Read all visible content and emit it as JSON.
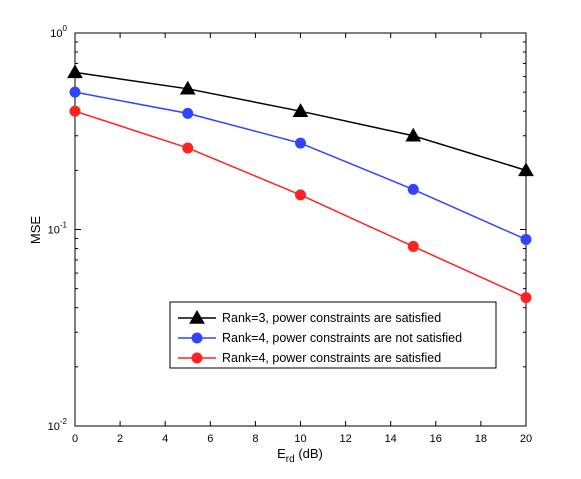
{
  "chart_data": {
    "type": "line",
    "title": "",
    "xlabel": {
      "main": "E",
      "sub": "rd",
      "unit": " (dB)"
    },
    "ylabel": "MSE",
    "x_ticks": [
      0,
      2,
      4,
      6,
      8,
      10,
      12,
      14,
      16,
      18,
      20
    ],
    "xlim": [
      0,
      20
    ],
    "y_scale": "log",
    "ylim": [
      0.01,
      1
    ],
    "y_ticks": [
      {
        "value": 0.01,
        "base": "10",
        "exp": "-2"
      },
      {
        "value": 0.1,
        "base": "10",
        "exp": "-1"
      },
      {
        "value": 1,
        "base": "10",
        "exp": "0"
      }
    ],
    "grid": false,
    "legend_position": "lower-right",
    "series": [
      {
        "name": "Rank=3, power constraints are satisfied",
        "color": "#000000",
        "marker": "triangle",
        "x": [
          0,
          5,
          10,
          15,
          20
        ],
        "y": [
          0.63,
          0.52,
          0.4,
          0.3,
          0.2
        ]
      },
      {
        "name": "Rank=4, power constraints are not satisfied",
        "color": "#3344ff",
        "marker": "circle",
        "x": [
          0,
          5,
          10,
          15,
          20
        ],
        "y": [
          0.5,
          0.39,
          0.275,
          0.16,
          0.089
        ]
      },
      {
        "name": "Rank=4, power constraints are satisfied",
        "color": "#ff2222",
        "marker": "circle",
        "x": [
          0,
          5,
          10,
          15,
          20
        ],
        "y": [
          0.4,
          0.26,
          0.15,
          0.082,
          0.045
        ]
      }
    ]
  }
}
